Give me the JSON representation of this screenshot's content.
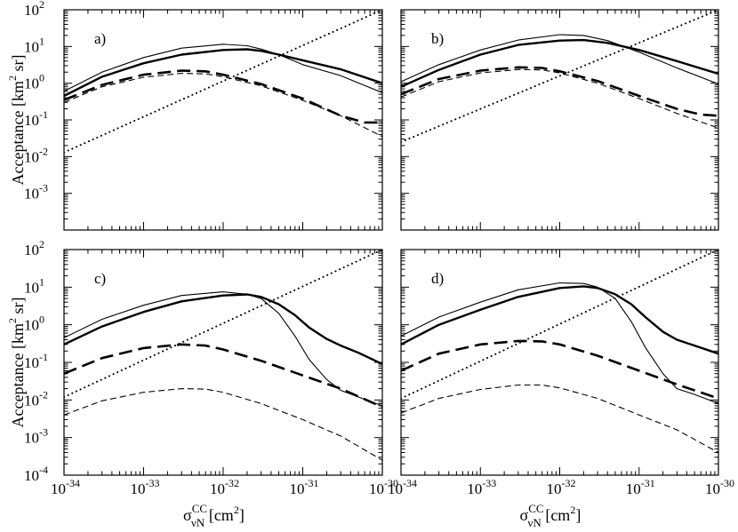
{
  "figure": {
    "ylabel": "Acceptance [km",
    "ylabel_sup": "2",
    "ylabel_tail": " sr]",
    "xlabel_sigma": "σ",
    "xlabel_sup": "CC",
    "xlabel_sub": "νN",
    "xlabel_tail": " [cm",
    "xlabel_tail_sup": "2",
    "xlabel_end": "]",
    "xticks": [
      {
        "base": "10",
        "exp": "-34"
      },
      {
        "base": "10",
        "exp": "-33"
      },
      {
        "base": "10",
        "exp": "-32"
      },
      {
        "base": "10",
        "exp": "-31"
      },
      {
        "base": "10",
        "exp": "-30"
      }
    ],
    "yticks_top": [
      {
        "base": "10",
        "exp": "-3"
      },
      {
        "base": "10",
        "exp": "-2"
      },
      {
        "base": "10",
        "exp": "-1"
      },
      {
        "base": "10",
        "exp": "0"
      },
      {
        "base": "10",
        "exp": "1"
      },
      {
        "base": "10",
        "exp": "2"
      }
    ],
    "yticks_bottom": [
      {
        "base": "10",
        "exp": "-4"
      },
      {
        "base": "10",
        "exp": "-3"
      },
      {
        "base": "10",
        "exp": "-2"
      },
      {
        "base": "10",
        "exp": "-1"
      },
      {
        "base": "10",
        "exp": "0"
      },
      {
        "base": "10",
        "exp": "1"
      },
      {
        "base": "10",
        "exp": "2"
      }
    ]
  },
  "chart_data": [
    {
      "type": "line",
      "panel": "a)",
      "xscale": "log",
      "yscale": "log",
      "xlim": [
        1e-34,
        1e-30
      ],
      "ylim": [
        0.0001,
        100
      ],
      "series": [
        {
          "name": "thin solid",
          "style": "thin-solid",
          "x": [
            1e-34,
            3e-34,
            1e-33,
            3e-33,
            1e-32,
            2e-32,
            3e-32,
            5e-32,
            1e-31,
            3e-31,
            1e-30
          ],
          "y": [
            0.6,
            2.0,
            5.0,
            9.0,
            11.5,
            10.5,
            8.5,
            6.0,
            3.2,
            1.6,
            0.55
          ]
        },
        {
          "name": "thick solid",
          "style": "thick-solid",
          "x": [
            1e-34,
            3e-34,
            1e-33,
            3e-33,
            1e-32,
            2e-32,
            3e-32,
            5e-32,
            1e-31,
            3e-31,
            1e-30
          ],
          "y": [
            0.45,
            1.5,
            3.5,
            6.0,
            8.0,
            8.4,
            7.6,
            6.0,
            4.2,
            2.4,
            1.0
          ]
        },
        {
          "name": "thick dashed",
          "style": "thick-dashed",
          "x": [
            1e-34,
            3e-34,
            1e-33,
            3e-33,
            6e-33,
            1e-32,
            3e-32,
            1e-31,
            3e-31,
            6e-31,
            1e-30
          ],
          "y": [
            0.35,
            0.9,
            1.7,
            2.2,
            2.1,
            1.7,
            0.95,
            0.38,
            0.13,
            0.085,
            0.085
          ]
        },
        {
          "name": "thin dashed",
          "style": "thin-dashed",
          "x": [
            1e-34,
            3e-34,
            1e-33,
            3e-33,
            6e-33,
            1e-32,
            3e-32,
            1e-31,
            3e-31,
            1e-30
          ],
          "y": [
            0.3,
            0.8,
            1.45,
            1.85,
            1.8,
            1.5,
            0.85,
            0.34,
            0.13,
            0.035
          ]
        },
        {
          "name": "dotted",
          "style": "dotted",
          "x": [
            1e-34,
            1e-30
          ],
          "y": [
            0.013,
            100
          ]
        }
      ]
    },
    {
      "type": "line",
      "panel": "b)",
      "xscale": "log",
      "yscale": "log",
      "xlim": [
        1e-34,
        1e-30
      ],
      "ylim": [
        0.0001,
        100
      ],
      "series": [
        {
          "name": "thin solid",
          "style": "thin-solid",
          "x": [
            1e-34,
            3e-34,
            1e-33,
            3e-33,
            1e-32,
            2e-32,
            4e-32,
            1e-31,
            3e-31,
            1e-30
          ],
          "y": [
            1.1,
            3.2,
            8.0,
            15.0,
            21.0,
            20.0,
            14.5,
            7.0,
            2.6,
            0.95
          ]
        },
        {
          "name": "thick solid",
          "style": "thick-solid",
          "x": [
            1e-34,
            3e-34,
            1e-33,
            3e-33,
            1e-32,
            2e-32,
            4e-32,
            1e-31,
            3e-31,
            1e-30
          ],
          "y": [
            0.8,
            2.3,
            6.0,
            11.0,
            14.5,
            15.0,
            12.5,
            8.0,
            4.0,
            1.8
          ]
        },
        {
          "name": "thick dashed",
          "style": "thick-dashed",
          "x": [
            1e-34,
            3e-34,
            1e-33,
            3e-33,
            6e-33,
            1e-32,
            3e-32,
            1e-31,
            3e-31,
            6e-31,
            1e-30
          ],
          "y": [
            0.5,
            1.3,
            2.2,
            2.7,
            2.6,
            2.1,
            1.15,
            0.45,
            0.2,
            0.14,
            0.13
          ]
        },
        {
          "name": "thin dashed",
          "style": "thin-dashed",
          "x": [
            1e-34,
            3e-34,
            1e-33,
            3e-33,
            6e-33,
            1e-32,
            3e-32,
            1e-31,
            3e-31,
            1e-30
          ],
          "y": [
            0.42,
            1.1,
            1.9,
            2.35,
            2.3,
            1.9,
            1.0,
            0.38,
            0.15,
            0.06
          ]
        },
        {
          "name": "dotted",
          "style": "dotted",
          "x": [
            1e-34,
            1e-30
          ],
          "y": [
            0.025,
            100
          ]
        }
      ]
    },
    {
      "type": "line",
      "panel": "c)",
      "xscale": "log",
      "yscale": "log",
      "xlim": [
        1e-34,
        1e-30
      ],
      "ylim": [
        0.0001,
        100
      ],
      "series": [
        {
          "name": "thin solid",
          "style": "thin-solid",
          "x": [
            1e-34,
            3e-34,
            1e-33,
            3e-33,
            1e-32,
            2e-32,
            3e-32,
            5e-32,
            8e-32,
            1.2e-31,
            2e-31,
            3e-31,
            5e-31,
            1e-30
          ],
          "y": [
            0.45,
            1.4,
            3.3,
            6.0,
            7.5,
            6.5,
            5.0,
            2.0,
            0.5,
            0.12,
            0.035,
            0.018,
            0.012,
            0.007
          ]
        },
        {
          "name": "thick solid",
          "style": "thick-solid",
          "x": [
            1e-34,
            3e-34,
            1e-33,
            3e-33,
            1e-32,
            2e-32,
            3e-32,
            5e-32,
            8e-32,
            1.2e-31,
            2e-31,
            3e-31,
            5e-31,
            1e-30
          ],
          "y": [
            0.3,
            0.9,
            2.2,
            4.2,
            6.0,
            6.4,
            5.5,
            3.5,
            1.8,
            0.85,
            0.42,
            0.28,
            0.18,
            0.09
          ]
        },
        {
          "name": "thick dashed",
          "style": "thick-dashed",
          "x": [
            1e-34,
            3e-34,
            1e-33,
            3e-33,
            6e-33,
            1e-32,
            3e-32,
            1e-31,
            3e-31,
            1e-30
          ],
          "y": [
            0.05,
            0.13,
            0.24,
            0.3,
            0.28,
            0.22,
            0.11,
            0.045,
            0.02,
            0.0065
          ]
        },
        {
          "name": "thin dashed",
          "style": "thin-dashed",
          "x": [
            1e-34,
            3e-34,
            1e-33,
            3e-33,
            6e-33,
            1e-32,
            3e-32,
            1e-31,
            3e-31,
            1e-30
          ],
          "y": [
            0.004,
            0.0095,
            0.016,
            0.02,
            0.0195,
            0.016,
            0.008,
            0.003,
            0.0011,
            0.00025
          ]
        },
        {
          "name": "dotted",
          "style": "dotted",
          "x": [
            1e-34,
            1e-30
          ],
          "y": [
            0.012,
            100
          ]
        }
      ]
    },
    {
      "type": "line",
      "panel": "d)",
      "xscale": "log",
      "yscale": "log",
      "xlim": [
        1e-34,
        1e-30
      ],
      "ylim": [
        0.0001,
        100
      ],
      "series": [
        {
          "name": "thin solid",
          "style": "thin-solid",
          "x": [
            1e-34,
            3e-34,
            1e-33,
            3e-33,
            1e-32,
            2e-32,
            3e-32,
            5e-32,
            8e-32,
            1.2e-31,
            2e-31,
            3e-31,
            5e-31,
            1e-30
          ],
          "y": [
            0.5,
            1.6,
            4.0,
            8.5,
            13.0,
            12.5,
            10.0,
            5.0,
            1.2,
            0.25,
            0.05,
            0.02,
            0.014,
            0.008
          ]
        },
        {
          "name": "thick solid",
          "style": "thick-solid",
          "x": [
            1e-34,
            3e-34,
            1e-33,
            3e-33,
            1e-32,
            2e-32,
            3e-32,
            5e-32,
            8e-32,
            1.2e-31,
            2e-31,
            3e-31,
            5e-31,
            1e-30
          ],
          "y": [
            0.3,
            1.0,
            2.5,
            5.5,
            9.5,
            10.5,
            9.5,
            6.5,
            3.5,
            1.6,
            0.65,
            0.4,
            0.28,
            0.17
          ]
        },
        {
          "name": "thick dashed",
          "style": "thick-dashed",
          "x": [
            1e-34,
            3e-34,
            1e-33,
            3e-33,
            6e-33,
            1e-32,
            3e-32,
            1e-31,
            3e-31,
            1e-30
          ],
          "y": [
            0.06,
            0.17,
            0.3,
            0.37,
            0.36,
            0.3,
            0.15,
            0.06,
            0.026,
            0.011
          ]
        },
        {
          "name": "thin dashed",
          "style": "thin-dashed",
          "x": [
            1e-34,
            3e-34,
            1e-33,
            3e-33,
            6e-33,
            1e-32,
            3e-32,
            1e-31,
            3e-31,
            1e-30
          ],
          "y": [
            0.0045,
            0.011,
            0.019,
            0.025,
            0.025,
            0.021,
            0.011,
            0.004,
            0.0016,
            0.0004
          ]
        },
        {
          "name": "dotted",
          "style": "dotted",
          "x": [
            1e-34,
            1e-30
          ],
          "y": [
            0.011,
            100
          ]
        }
      ]
    }
  ]
}
